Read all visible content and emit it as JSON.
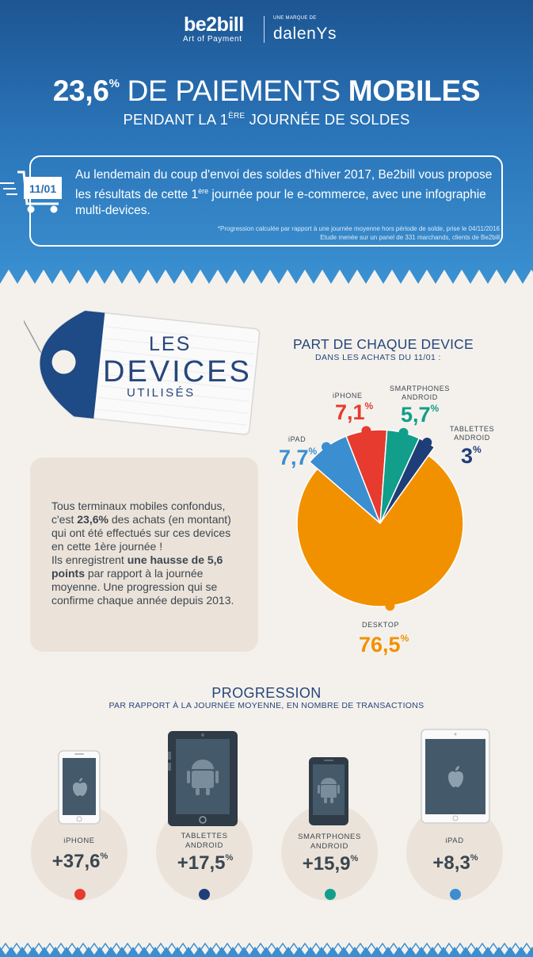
{
  "brand": {
    "name": "be2bill",
    "tagline": "Art of Payment",
    "parent_prefix": "UNE MARQUE DE",
    "parent_name": "dalenYs"
  },
  "header": {
    "title_value": "23,6",
    "title_sup": "%",
    "title_mid": "DE PAIEMENTS",
    "title_bold": "MOBILES",
    "subtitle_pre": "PENDANT LA 1",
    "subtitle_sup": "ÈRE",
    "subtitle_post": " JOURNÉE DE SOLDES"
  },
  "intro": {
    "date_badge": "11/01",
    "text_part1": "Au lendemain du coup d'envoi des soldes d'hiver 2017, Be2bill vous propose les résultats de cette 1",
    "text_sup": "ère",
    "text_part2": " journée pour le e-commerce, avec une infographie multi-devices.",
    "note1": "*Progression calculée par rapport à une journée moyenne hors période de solde, prise le 04/11/2016",
    "note2": "Etude menée sur un panel de 331 marchands, clients de Be2bill"
  },
  "tag": {
    "line1": "LES",
    "line2": "DEVICES",
    "line3": "UTILISÉS"
  },
  "card": {
    "p1": "Tous terminaux mobiles confondus, c'est ",
    "p1_bold": "23,6%",
    "p2": " des achats (en montant) qui ont été effectués sur ces devices en cette 1ère journée !",
    "p3": "Ils enregistrent ",
    "p3_bold": "une hausse de 5,6 points",
    "p4": " par rapport à la journée moyenne. Une progression qui se confirme chaque année depuis 2013."
  },
  "chart_data": [
    {
      "type": "pie",
      "title": "PART DE CHAQUE DEVICE",
      "subtitle": "DANS LES ACHATS DU 11/01 :",
      "unit": "%",
      "slices": [
        {
          "label": "DESKTOP",
          "value": 76.5,
          "display": "76,5",
          "color": "#f29100"
        },
        {
          "label": "iPAD",
          "value": 7.7,
          "display": "7,7",
          "color": "#3b8ed0"
        },
        {
          "label": "iPHONE",
          "value": 7.1,
          "display": "7,1",
          "color": "#e63b2e"
        },
        {
          "label": "SMARTPHONES ANDROID",
          "value": 5.7,
          "display": "5,7",
          "color": "#119e8a"
        },
        {
          "label": "TABLETTES ANDROID",
          "value": 3,
          "display": "3",
          "color": "#1e3e78"
        }
      ]
    },
    {
      "type": "table",
      "title": "PROGRESSION",
      "subtitle": "PAR RAPPORT À LA JOURNÉE MOYENNE, EN NOMBRE DE TRANSACTIONS",
      "unit": "%",
      "items": [
        {
          "label": "iPHONE",
          "value": 37.6,
          "display": "+37,6",
          "color": "#e63b2e",
          "device": "iphone-icon"
        },
        {
          "label": "TABLETTES ANDROID",
          "value": 17.5,
          "display": "+17,5",
          "color": "#1e3e78",
          "device": "android-tablet-icon"
        },
        {
          "label": "SMARTPHONES ANDROID",
          "value": 15.9,
          "display": "+15,9",
          "color": "#119e8a",
          "device": "android-phone-icon"
        },
        {
          "label": "iPAD",
          "value": 8.3,
          "display": "+8,3",
          "color": "#3b8ed0",
          "device": "ipad-icon"
        }
      ]
    }
  ]
}
